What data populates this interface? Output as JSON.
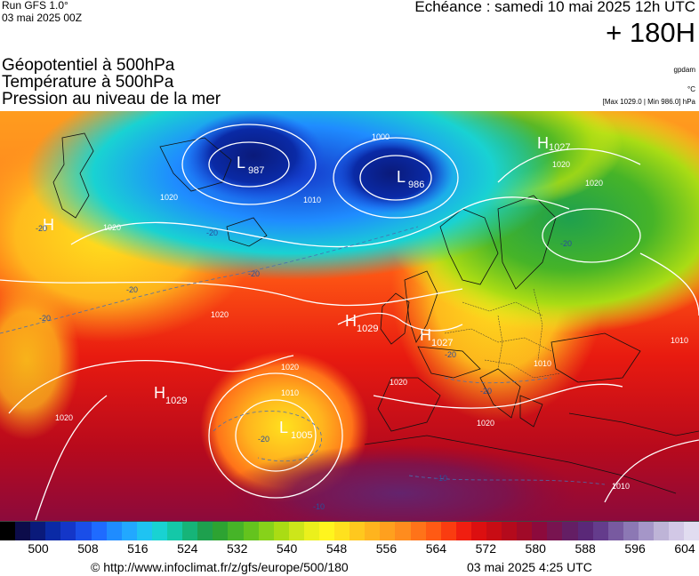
{
  "header": {
    "run": "Run GFS 1.0°",
    "date": "03 mai 2025 00Z",
    "echeance": "Echéance : samedi 10 mai 2025 12h UTC",
    "forecast_hour": "+ 180H"
  },
  "layers": {
    "geopotential": "Géopotentiel à 500hPa",
    "temperature": "Température à 500hPa",
    "pressure": "Pression au niveau de la mer"
  },
  "units": {
    "geopotential": "gpdam",
    "temperature": "°C",
    "pressure_range": "[Max 1029.0 | Min 986.0] hPa"
  },
  "pressure_centers": [
    {
      "type": "L",
      "value": "987"
    },
    {
      "type": "L",
      "value": "986"
    },
    {
      "type": "H",
      "value": ""
    },
    {
      "type": "H",
      "value": "1029"
    },
    {
      "type": "H",
      "value": "1027"
    },
    {
      "type": "H",
      "value": "1029"
    },
    {
      "type": "L",
      "value": "1005"
    },
    {
      "type": "H",
      "value": "1027"
    }
  ],
  "isobar_labels": [
    "1020",
    "1020",
    "1010",
    "1000",
    "1020",
    "1020",
    "1020",
    "1010",
    "1020",
    "1020",
    "1010",
    "1010",
    "1020",
    "1010",
    "1020"
  ],
  "temperature_labels": [
    "-20",
    "-20",
    "-20",
    "-20",
    "-20",
    "-20",
    "-20",
    "-20",
    "-20",
    "-10",
    "-10"
  ],
  "colorbar": {
    "ticks": [
      "500",
      "508",
      "516",
      "524",
      "532",
      "540",
      "548",
      "556",
      "564",
      "572",
      "580",
      "588",
      "596",
      "604"
    ],
    "colors": [
      "#000000",
      "#0c0c4a",
      "#0a1a7a",
      "#0a2aa6",
      "#1436c8",
      "#1a4ee8",
      "#1f6bff",
      "#1f8cff",
      "#22a8ff",
      "#1fc3f2",
      "#19d2d2",
      "#14c8a8",
      "#16b478",
      "#1ea04e",
      "#2da332",
      "#46b428",
      "#64c31e",
      "#87d21a",
      "#aadc14",
      "#cde61a",
      "#ebf01c",
      "#fff51e",
      "#ffe11e",
      "#ffc81e",
      "#ffb41e",
      "#ffa01e",
      "#ff8c1e",
      "#ff7319",
      "#ff5a14",
      "#fa3c10",
      "#f01e10",
      "#dc0f10",
      "#c80c14",
      "#b40a1c",
      "#a00a28",
      "#8c0a3c",
      "#781450",
      "#641e64",
      "#5a2878",
      "#643c8c",
      "#785aa0",
      "#8c78b4",
      "#a596c8",
      "#beb4d7",
      "#d2c8e6",
      "#e1dcf0"
    ]
  },
  "footer": {
    "credit": "© http://www.infoclimat.fr/z/gfs/europe/500/180",
    "timestamp": "03 mai 2025  4:25 UTC"
  }
}
